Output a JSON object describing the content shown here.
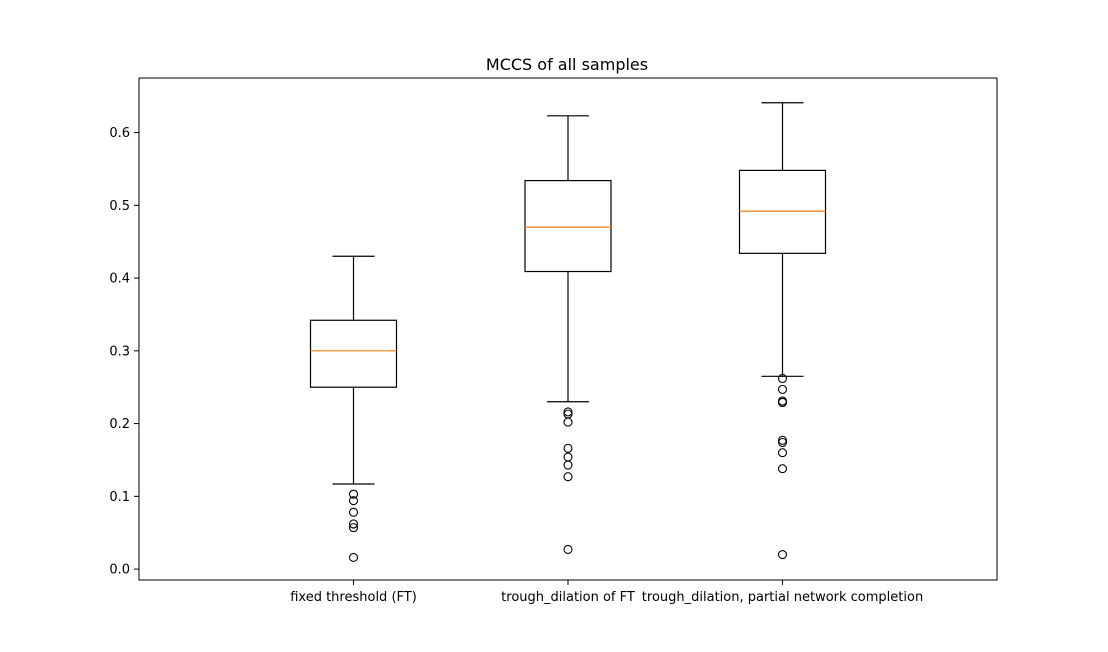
{
  "chart_data": {
    "type": "box",
    "title": "MCCS of all samples",
    "xlabel": "",
    "ylabel": "",
    "ylim": [
      -0.015,
      0.675
    ],
    "yticks": [
      0.0,
      0.1,
      0.2,
      0.3,
      0.4,
      0.5,
      0.6
    ],
    "ytick_labels": [
      "0.0",
      "0.1",
      "0.2",
      "0.3",
      "0.4",
      "0.5",
      "0.6"
    ],
    "categories": [
      "fixed threshold (FT)",
      "trough_dilation of FT",
      "trough_dilation, partial network completion"
    ],
    "boxes": [
      {
        "whisker_low": 0.117,
        "q1": 0.25,
        "median": 0.3,
        "q3": 0.342,
        "whisker_high": 0.43,
        "outliers": [
          0.103,
          0.094,
          0.078,
          0.062,
          0.057,
          0.016
        ]
      },
      {
        "whisker_low": 0.23,
        "q1": 0.409,
        "median": 0.47,
        "q3": 0.534,
        "whisker_high": 0.623,
        "outliers": [
          0.216,
          0.213,
          0.202,
          0.166,
          0.154,
          0.143,
          0.127,
          0.027
        ]
      },
      {
        "whisker_low": 0.265,
        "q1": 0.434,
        "median": 0.492,
        "q3": 0.548,
        "whisker_high": 0.641,
        "outliers": [
          0.262,
          0.247,
          0.231,
          0.229,
          0.177,
          0.174,
          0.16,
          0.138,
          0.02
        ]
      }
    ],
    "colors": {
      "box": "#000000",
      "median": "#ff7f0e",
      "background": "#ffffff"
    },
    "grid": false
  }
}
